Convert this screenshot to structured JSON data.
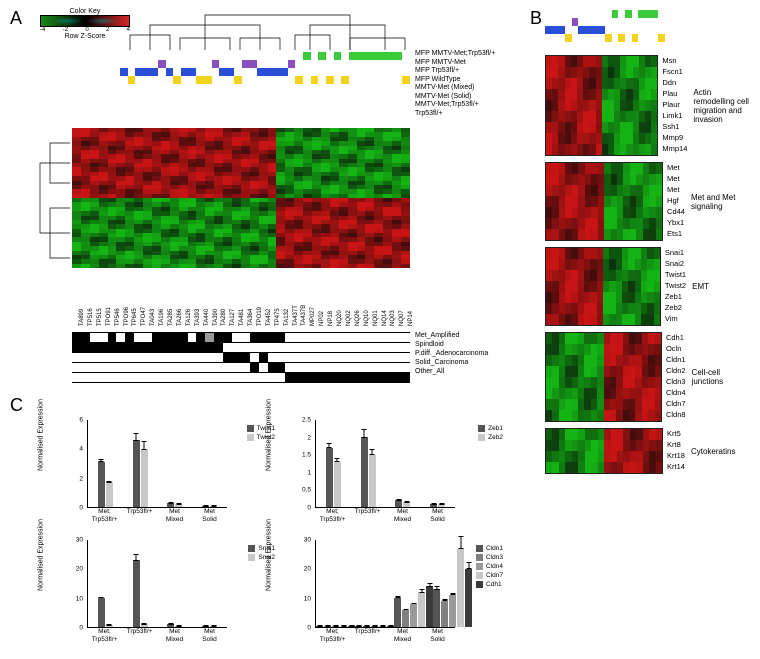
{
  "colors": {
    "green": "#1a8a1a",
    "darkgreen": "#0b4d0b",
    "red": "#c92a2a",
    "darkred": "#7a1414",
    "black": "#000000",
    "white": "#ffffff",
    "purple": "#8a4fbf",
    "blue": "#2a4fd6",
    "yellow": "#f2d21a",
    "limegreen": "#3acb3a",
    "grey": "#9a9a9a",
    "lightgrey": "#c8c8c8",
    "darkgrey": "#555555",
    "midgrey": "#808080"
  },
  "panelLabels": {
    "A": "A",
    "B": "B",
    "C": "C"
  },
  "colorkey": {
    "title": "Color Key",
    "zlabel": "Row Z-Score",
    "ticks": [
      "-4",
      "-2",
      "0",
      "2",
      "4"
    ]
  },
  "genotypeLegend": [
    "MFP MMTV-Met;Trp53fl/+",
    "MFP MMTV-Met",
    "MFP Trp53fl/+",
    "MFP WildType",
    "MMTV-Met (Mixed)",
    "MMTV-Met (Solid)",
    "MMTV-Met;Trp53fl/+",
    "Trp53fl/+"
  ],
  "genotypeColorsLegend": [
    "limegreen",
    "limegreen",
    "limegreen",
    "limegreen",
    "purple",
    "purple",
    "blue",
    "yellow"
  ],
  "genotypeBarA": {
    "rows": 4,
    "cols": 38,
    "rowColors": [
      "limegreen",
      "purple",
      "blue",
      "yellow"
    ],
    "pattern": [
      [
        0,
        0,
        0,
        0,
        0,
        0,
        0,
        0,
        0,
        0,
        0,
        0,
        0,
        0,
        0,
        0,
        0,
        0,
        0,
        0,
        0,
        0,
        0,
        0,
        1,
        0,
        1,
        0,
        1,
        0,
        1,
        1,
        1,
        1,
        1,
        1,
        1,
        0
      ],
      [
        0,
        0,
        0,
        0,
        0,
        1,
        0,
        0,
        0,
        0,
        0,
        0,
        1,
        0,
        0,
        0,
        1,
        1,
        0,
        0,
        0,
        0,
        1,
        0,
        0,
        0,
        0,
        0,
        0,
        0,
        0,
        0,
        0,
        0,
        0,
        0,
        0,
        0
      ],
      [
        1,
        0,
        1,
        1,
        1,
        0,
        1,
        0,
        1,
        1,
        0,
        0,
        0,
        1,
        1,
        0,
        0,
        0,
        1,
        1,
        1,
        1,
        0,
        0,
        0,
        0,
        0,
        0,
        0,
        0,
        0,
        0,
        0,
        0,
        0,
        0,
        0,
        0
      ],
      [
        0,
        1,
        0,
        0,
        0,
        0,
        0,
        1,
        0,
        0,
        1,
        1,
        0,
        0,
        0,
        1,
        0,
        0,
        0,
        0,
        0,
        0,
        0,
        1,
        0,
        1,
        0,
        1,
        0,
        1,
        0,
        0,
        0,
        0,
        0,
        0,
        0,
        1
      ]
    ]
  },
  "heatmapA": {
    "rows": 32,
    "cols": 38,
    "clusterSplit": 23,
    "upperLeft": "red",
    "upperRight": "green",
    "lowerLeft": "green",
    "lowerRight": "red"
  },
  "sampleLabels": [
    "TA899",
    "TP516",
    "TP515",
    "TPO91",
    "TP546",
    "TPO96",
    "TP645",
    "TPO47",
    "TA043",
    "TA196",
    "TA285",
    "TA266",
    "TA126",
    "TA393",
    "TA440",
    "TA390",
    "TA280",
    "TA127",
    "TA481",
    "TA364",
    "TPO19",
    "TA452",
    "TP475",
    "TA132",
    "TA437T",
    "TA437B",
    "MP027",
    "NP02",
    "NP18",
    "NQ20",
    "NQ02",
    "NQ26",
    "NQ10",
    "NQ01",
    "NQ14",
    "NQ03",
    "NQ07",
    "NP14"
  ],
  "featureBars": {
    "labels": [
      "Met_Amplified",
      "Spindloid",
      "P.diff._Adenocarcinoma",
      "Solid_Carcinoma",
      "Other_All"
    ],
    "cols": 38,
    "pattern": [
      [
        1,
        1,
        0,
        0,
        1,
        0,
        1,
        0,
        0,
        1,
        1,
        1,
        1,
        0,
        1,
        2,
        1,
        1,
        0,
        0,
        1,
        1,
        1,
        1,
        0,
        0,
        0,
        0,
        0,
        0,
        0,
        0,
        0,
        0,
        0,
        0,
        0,
        0
      ],
      [
        1,
        1,
        1,
        1,
        1,
        1,
        1,
        1,
        1,
        1,
        1,
        1,
        1,
        1,
        1,
        1,
        1,
        0,
        0,
        0,
        0,
        0,
        0,
        0,
        0,
        0,
        0,
        0,
        0,
        0,
        0,
        0,
        0,
        0,
        0,
        0,
        0,
        0
      ],
      [
        0,
        0,
        0,
        0,
        0,
        0,
        0,
        0,
        0,
        0,
        0,
        0,
        0,
        0,
        0,
        0,
        0,
        1,
        1,
        1,
        0,
        1,
        0,
        0,
        0,
        0,
        0,
        0,
        0,
        0,
        0,
        0,
        0,
        0,
        0,
        0,
        0,
        0
      ],
      [
        0,
        0,
        0,
        0,
        0,
        0,
        0,
        0,
        0,
        0,
        0,
        0,
        0,
        0,
        0,
        0,
        0,
        0,
        0,
        0,
        1,
        0,
        1,
        1,
        0,
        0,
        0,
        0,
        0,
        0,
        0,
        0,
        0,
        0,
        0,
        0,
        0,
        0
      ],
      [
        0,
        0,
        0,
        0,
        0,
        0,
        0,
        0,
        0,
        0,
        0,
        0,
        0,
        0,
        0,
        0,
        0,
        0,
        0,
        0,
        0,
        0,
        0,
        0,
        1,
        1,
        1,
        1,
        1,
        1,
        1,
        1,
        1,
        1,
        1,
        1,
        1,
        1
      ]
    ]
  },
  "panelB": {
    "genotypeBar": {
      "rows": 4,
      "cols": 18,
      "rowColors": [
        "limegreen",
        "purple",
        "blue",
        "yellow"
      ],
      "pattern": [
        [
          0,
          0,
          0,
          0,
          0,
          0,
          0,
          0,
          0,
          0,
          1,
          0,
          1,
          0,
          1,
          1,
          1,
          0
        ],
        [
          0,
          0,
          0,
          0,
          1,
          0,
          0,
          0,
          0,
          0,
          0,
          0,
          0,
          0,
          0,
          0,
          0,
          0
        ],
        [
          1,
          1,
          1,
          0,
          0,
          1,
          1,
          1,
          1,
          0,
          0,
          0,
          0,
          0,
          0,
          0,
          0,
          0
        ],
        [
          0,
          0,
          0,
          1,
          0,
          0,
          0,
          0,
          0,
          1,
          0,
          1,
          0,
          1,
          0,
          0,
          0,
          1
        ]
      ]
    },
    "groups": [
      {
        "category": "Actin remodelling cell migration and invasion",
        "genes": [
          "Msn",
          "Fscn1",
          "Ddn",
          "Plau",
          "Plaur",
          "Limk1",
          "Ssh1",
          "Mmp9",
          "Mmp14"
        ],
        "profile": [
          1,
          1,
          1,
          1,
          1,
          1,
          1,
          1,
          1
        ]
      },
      {
        "category": "Met and Met signaling",
        "genes": [
          "Met",
          "Met",
          "Met",
          "Hgf",
          "Cd44",
          "Ybx1",
          "Ets1"
        ],
        "profile": [
          1,
          1,
          1,
          1,
          1,
          1,
          1
        ]
      },
      {
        "category": "EMT",
        "genes": [
          "Snai1",
          "Snai2",
          "Twist1",
          "Twist2",
          "Zeb1",
          "Zeb2",
          "Vim"
        ],
        "profile": [
          1,
          1,
          1,
          1,
          1,
          1,
          1
        ]
      },
      {
        "category": "Cell-cell junctions",
        "genes": [
          "Cdh1",
          "Ocln",
          "Cldn1",
          "Cldn2",
          "Cldn3",
          "Cldn4",
          "Cldn7",
          "Cldn8"
        ],
        "profile": [
          0,
          0,
          0,
          0,
          0,
          0,
          0,
          0
        ]
      },
      {
        "category": "Cytokeratins",
        "genes": [
          "Krt5",
          "Krt8",
          "Krt18",
          "Krt14"
        ],
        "profile": [
          0,
          0,
          0,
          0
        ]
      }
    ],
    "clusterSplit": 9
  },
  "panelC": {
    "ylabel": "Normalised Expression",
    "xgroups": [
      "Met;\nTrp53fl/+",
      "Trp53fl/+",
      "Met\nMixed",
      "Met\nSolid"
    ],
    "charts": [
      {
        "legend": [
          "Twist1",
          "Twist2"
        ],
        "colors": [
          "darkgrey",
          "lightgrey"
        ],
        "ymax": 6,
        "ytick": 2,
        "data": [
          [
            3.1,
            1.7
          ],
          [
            4.6,
            4.0
          ],
          [
            0.3,
            0.2
          ],
          [
            0.1,
            0.1
          ]
        ],
        "err": [
          [
            0.4,
            0.3
          ],
          [
            0.7,
            0.9
          ],
          [
            0.1,
            0.1
          ],
          [
            0.05,
            0.05
          ]
        ]
      },
      {
        "legend": [
          "Zeb1",
          "Zeb2"
        ],
        "colors": [
          "darkgrey",
          "lightgrey"
        ],
        "ymax": 2.5,
        "ytick": 0.5,
        "data": [
          [
            1.7,
            1.3
          ],
          [
            2.0,
            1.5
          ],
          [
            0.2,
            0.15
          ],
          [
            0.1,
            0.1
          ]
        ],
        "err": [
          [
            0.2,
            0.2
          ],
          [
            0.3,
            0.3
          ],
          [
            0.05,
            0.05
          ],
          [
            0.05,
            0.05
          ]
        ]
      },
      {
        "legend": [
          "Snai1",
          "Snai2"
        ],
        "colors": [
          "darkgrey",
          "lightgrey"
        ],
        "ymax": 30,
        "ytick": 10,
        "data": [
          [
            10,
            0.8
          ],
          [
            23,
            1.2
          ],
          [
            1,
            0.5
          ],
          [
            0.5,
            0.3
          ]
        ],
        "err": [
          [
            1.5,
            0.2
          ],
          [
            3,
            0.3
          ],
          [
            0.3,
            0.1
          ],
          [
            0.2,
            0.1
          ]
        ]
      },
      {
        "legend": [
          "Cldn1",
          "Cldn3",
          "Cldn4",
          "Cldn7",
          "Cdh1"
        ],
        "colors": [
          "darkgrey",
          "midgrey",
          "grey",
          "lightgrey",
          "#3a3a3a"
        ],
        "ymax": 30,
        "ytick": 10,
        "data": [
          [
            0.3,
            0.2,
            0.3,
            0.2,
            0.4
          ],
          [
            0.2,
            0.2,
            0.2,
            0.2,
            0.3
          ],
          [
            10,
            6,
            8,
            12,
            14
          ],
          [
            13,
            9,
            11,
            27,
            20
          ]
        ],
        "err": [
          [
            0.1,
            0.1,
            0.1,
            0.1,
            0.1
          ],
          [
            0.1,
            0.1,
            0.1,
            0.1,
            0.1
          ],
          [
            2,
            1.5,
            2,
            3,
            3
          ],
          [
            3,
            2,
            2.5,
            5,
            4
          ]
        ]
      }
    ]
  }
}
